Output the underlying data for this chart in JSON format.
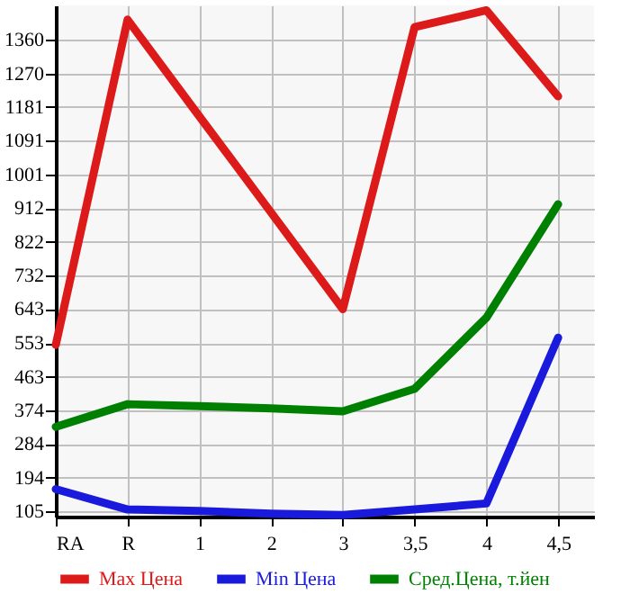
{
  "chart_data": {
    "type": "line",
    "categories": [
      "RA",
      "R",
      "1",
      "2",
      "3",
      "3,5",
      "4",
      "4,5"
    ],
    "series": [
      {
        "name": "Max Цена",
        "color": "#dd1a1a",
        "values": [
          548,
          1413,
          1156,
          900,
          643,
          1393,
          1438,
          1209
        ]
      },
      {
        "name": "Min Цена",
        "color": "#1a1add",
        "values": [
          164,
          110,
          106,
          99,
          95,
          110,
          126,
          567
        ]
      },
      {
        "name": "Сред.Цена, т.йен",
        "color": "#008000",
        "values": [
          330,
          390,
          385,
          379,
          371,
          431,
          620,
          922
        ]
      }
    ],
    "ylim": [
      91,
      1451
    ],
    "yticks": [
      105,
      194,
      284,
      374,
      463,
      553,
      643,
      732,
      822,
      912,
      1001,
      1091,
      1181,
      1270,
      1360
    ],
    "grid": true,
    "legend": "bottom",
    "marker": "none",
    "line_style": "solid"
  }
}
